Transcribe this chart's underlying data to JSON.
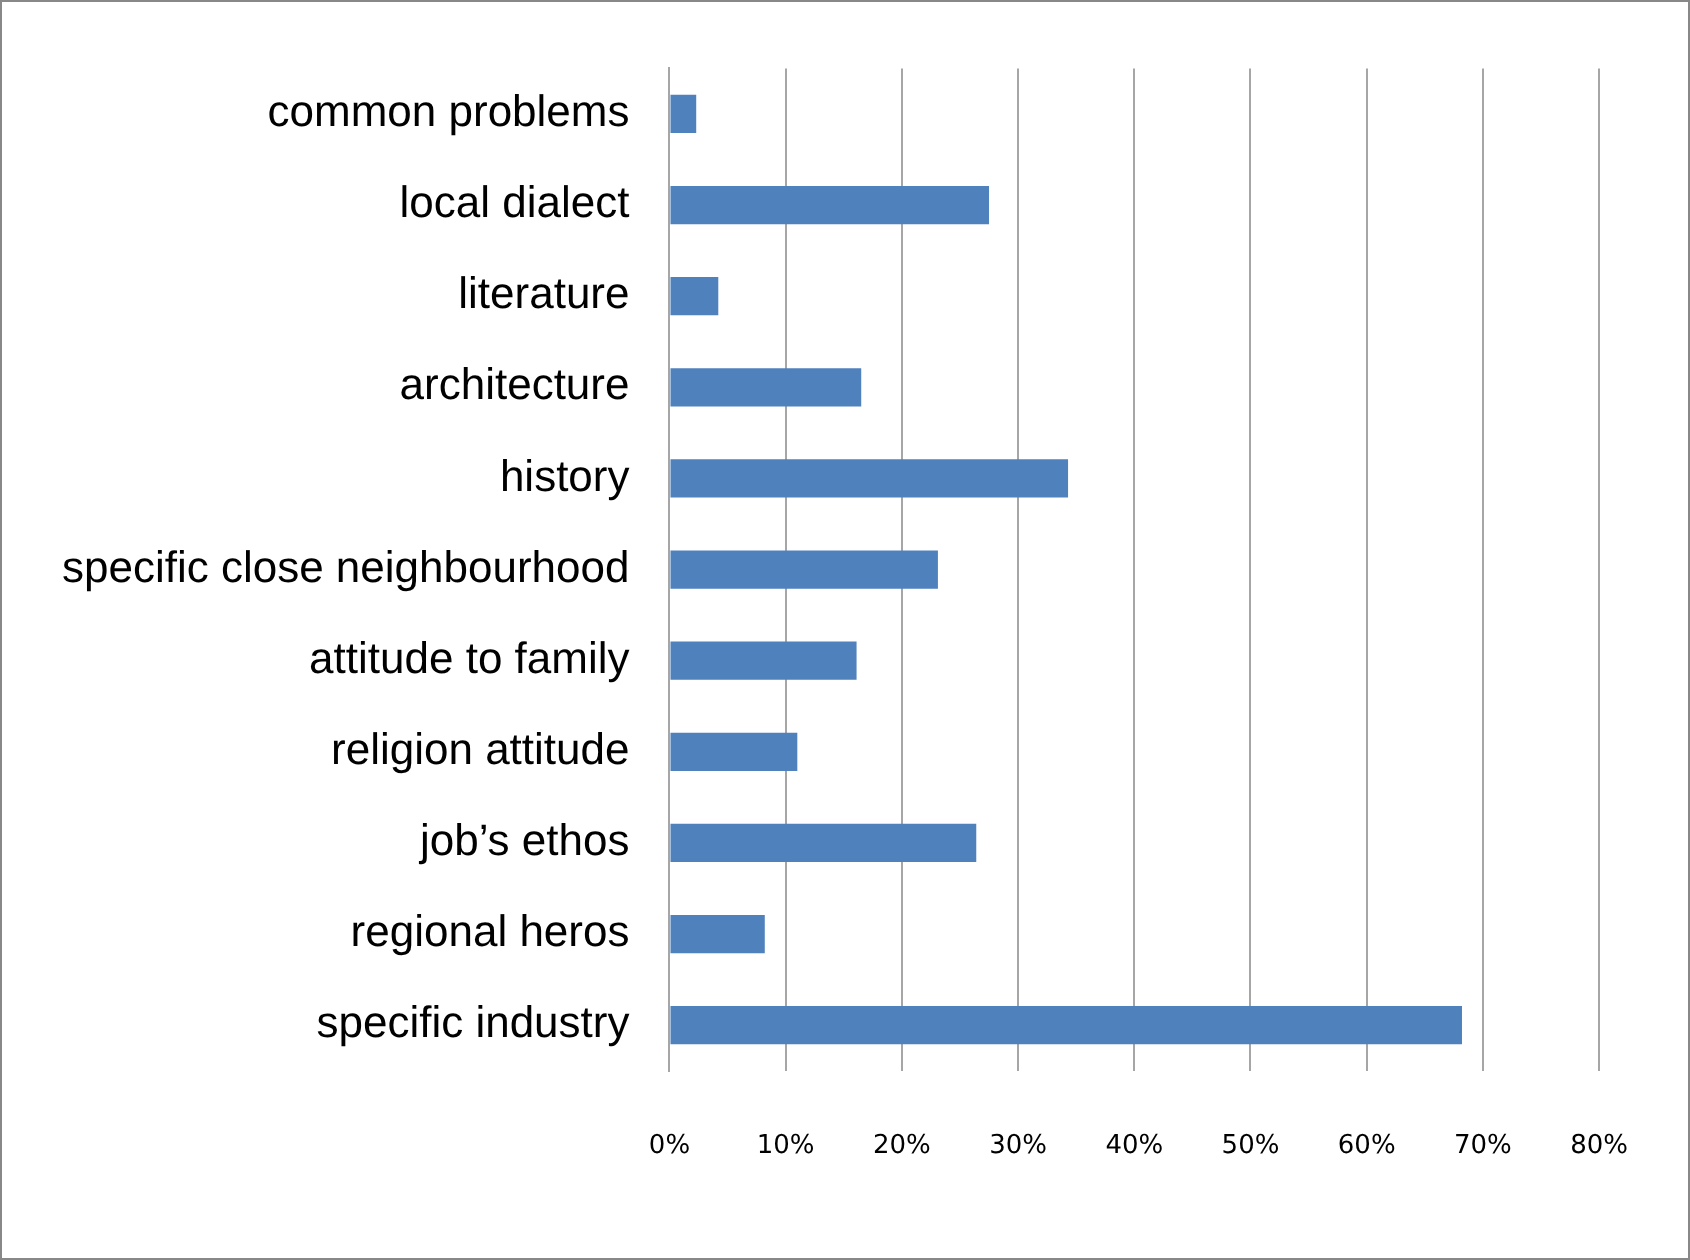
{
  "chart_data": {
    "type": "bar",
    "orientation": "horizontal",
    "categories": [
      "common problems",
      "local dialect",
      "literature",
      "architecture",
      "history",
      "specific close neighbourhood",
      "attitude to family",
      "religion attitude",
      "job’s ethos",
      "regional heros",
      "specific industry"
    ],
    "values": [
      2.3,
      27.5,
      4.2,
      16.5,
      34.3,
      23.1,
      16.1,
      11,
      26.4,
      8.2,
      68.2
    ],
    "color": "#4f81bd",
    "xlim": [
      0,
      80
    ],
    "xticks": [
      {
        "value": 0,
        "label": "0%"
      },
      {
        "value": 10,
        "label": "10%"
      },
      {
        "value": 20,
        "label": "20%"
      },
      {
        "value": 30,
        "label": "30%"
      },
      {
        "value": 40,
        "label": "40%"
      },
      {
        "value": 50,
        "label": "50%"
      },
      {
        "value": 60,
        "label": "60%"
      },
      {
        "value": 70,
        "label": "70%"
      },
      {
        "value": 80,
        "label": "80%"
      }
    ],
    "grid": "x",
    "legend": false
  }
}
